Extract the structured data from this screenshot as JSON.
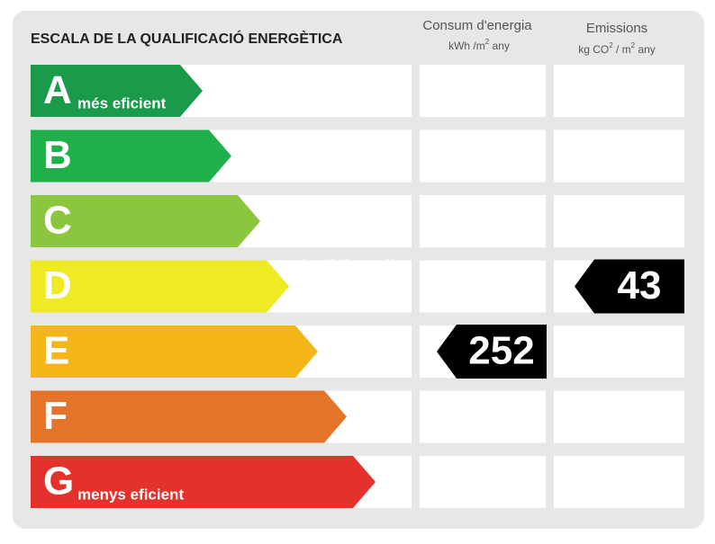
{
  "title": "ESCALA DE LA QUALIFICACIÓ ENERGÈTICA",
  "columns": [
    {
      "title": "Consum d'energia",
      "unit": [
        "kWh /m",
        "2",
        "  any"
      ]
    },
    {
      "title": "Emissions",
      "unit": [
        "kg CO",
        "2",
        " / m",
        "2",
        "  any"
      ]
    }
  ],
  "watermark": "habitaclia",
  "rows": [
    {
      "letter": "A",
      "label": "més eficient",
      "color": "#1a9a4a"
    },
    {
      "letter": "B",
      "color": "#1fb04b"
    },
    {
      "letter": "C",
      "color": "#8cc63f"
    },
    {
      "letter": "D",
      "color": "#eeea24",
      "emissions": 43
    },
    {
      "letter": "E",
      "color": "#f4b519",
      "consumption": 252
    },
    {
      "letter": "F",
      "color": "#e4742a"
    },
    {
      "letter": "G",
      "label": "menys eficient",
      "color": "#e3312b"
    }
  ]
}
